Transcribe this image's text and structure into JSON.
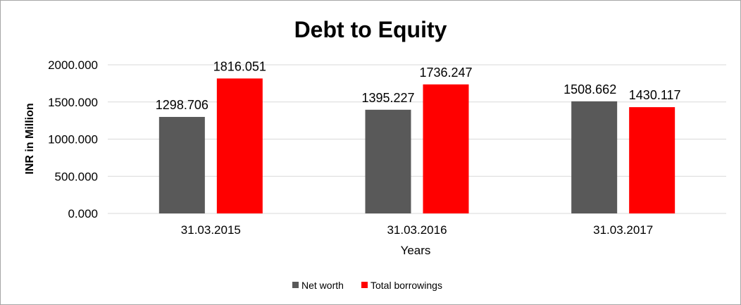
{
  "chart_data": {
    "type": "bar",
    "title": "Debt to Equity",
    "xlabel": "Years",
    "ylabel": "INR in Million",
    "categories": [
      "31.03.2015",
      "31.03.2016",
      "31.03.2017"
    ],
    "ylim": [
      0,
      2000
    ],
    "yticks": [
      "0.000",
      "500.000",
      "1000.000",
      "1500.000",
      "2000.000"
    ],
    "ytick_values": [
      0,
      500,
      1000,
      1500,
      2000
    ],
    "grid": true,
    "legend_position": "bottom",
    "series": [
      {
        "name": "Net worth",
        "color": "#595959",
        "values": [
          1298.706,
          1395.227,
          1508.662
        ],
        "labels": [
          "1298.706",
          "1395.227",
          "1508.662"
        ]
      },
      {
        "name": "Total borrowings",
        "color": "#ff0000",
        "values": [
          1816.051,
          1736.247,
          1430.117
        ],
        "labels": [
          "1816.051",
          "1736.247",
          "1430.117"
        ]
      }
    ]
  }
}
